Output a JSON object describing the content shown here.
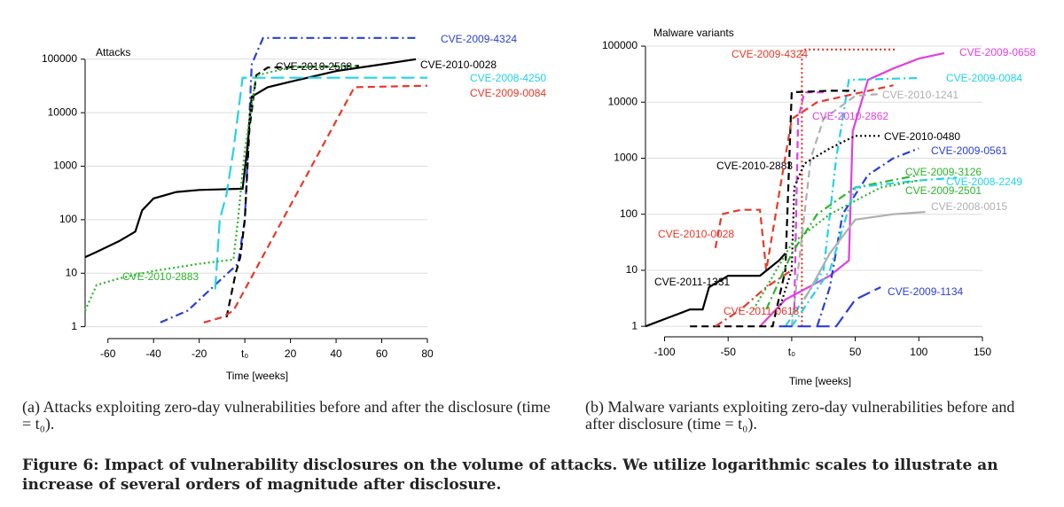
{
  "chart_data": [
    {
      "type": "line",
      "title": "Attacks",
      "xlabel": "Time [weeks]",
      "log_y": true,
      "xlim": [
        -70,
        80
      ],
      "ylim": [
        0.6,
        300000
      ],
      "xticks": [
        -60,
        -40,
        -20,
        {
          "value": 0,
          "label": "t₀"
        },
        20,
        40,
        60,
        80
      ],
      "yticks": [
        1,
        10,
        100,
        1000,
        10000,
        100000
      ],
      "series": [
        {
          "name": "CVE-2009-4324",
          "color": "#2a3fd8",
          "dash": "dashdot",
          "x": [
            -37,
            -25,
            -10,
            -3,
            0,
            3,
            8,
            75
          ],
          "values": [
            1.2,
            2,
            8,
            15,
            100,
            80000,
            250000,
            250000
          ]
        },
        {
          "name": "CVE-2010-0028",
          "color": "#000000",
          "dash": "solid",
          "x": [
            -70,
            -65,
            -55,
            -48,
            -45,
            -40,
            -30,
            -20,
            -1,
            1,
            3,
            10,
            20,
            40,
            60,
            75
          ],
          "values": [
            20,
            25,
            40,
            60,
            150,
            250,
            330,
            360,
            380,
            2000,
            20000,
            30000,
            38000,
            60000,
            80000,
            100000
          ]
        },
        {
          "name": "CVE-2010-2568",
          "color": "#000000",
          "dash": "dashed",
          "x": [
            -8,
            -4,
            -2,
            0,
            2,
            5,
            10,
            50
          ],
          "values": [
            1.5,
            10,
            20,
            100,
            5000,
            50000,
            70000,
            75000
          ]
        },
        {
          "name": "CVE-2008-4250",
          "color": "#22d3e6",
          "dash": "longdash",
          "x": [
            -13,
            -11,
            -8,
            -5,
            -1,
            80
          ],
          "values": [
            5,
            100,
            300,
            2000,
            45000,
            45000
          ]
        },
        {
          "name": "CVE-2009-0084",
          "color": "#e8382a",
          "dash": "dashed",
          "x": [
            -18,
            -10,
            -5,
            48,
            80
          ],
          "values": [
            1.2,
            1.5,
            2,
            30000,
            32000
          ]
        },
        {
          "name": "CVE-2010-2883",
          "color": "#2bb52b",
          "dash": "dotted",
          "x": [
            -70,
            -65,
            -55,
            -40,
            -20,
            -5,
            -3,
            0,
            5,
            20,
            50
          ],
          "values": [
            2,
            6,
            8,
            11,
            15,
            18,
            100,
            2000,
            50000,
            70000,
            75000
          ]
        }
      ]
    },
    {
      "type": "line",
      "title": "Malware variants",
      "xlabel": "Time [weeks]",
      "log_y": true,
      "xlim": [
        -115,
        150
      ],
      "ylim": [
        0.65,
        155000
      ],
      "xticks": [
        -100,
        -50,
        {
          "value": 0,
          "label": "t₀"
        },
        50,
        100,
        150
      ],
      "yticks": [
        1,
        10,
        100,
        1000,
        10000,
        100000
      ],
      "series": [
        {
          "name": "CVE-2009-4324",
          "color": "#e8382a",
          "dash": "dotted",
          "x": [
            8,
            8,
            82
          ],
          "values": [
            1,
            87000,
            87000
          ]
        },
        {
          "name": "CVE-2009-0658",
          "color": "#e040e0",
          "dash": "solid",
          "x": [
            -25,
            -5,
            30,
            45,
            48,
            60,
            80,
            100,
            120
          ],
          "values": [
            1,
            3,
            8,
            15,
            3000,
            25000,
            40000,
            60000,
            75000
          ]
        },
        {
          "name": "CVE-2009-0084",
          "color": "#22d3e6",
          "dash": "dashdot",
          "x": [
            -5,
            25,
            35,
            45,
            100
          ],
          "values": [
            1,
            10,
            1000,
            25000,
            27000
          ]
        },
        {
          "name": "CVE-2010-1241",
          "color": "#b0b0b0",
          "dash": "dashed",
          "x": [
            0,
            15,
            25,
            50,
            70
          ],
          "values": [
            1,
            1000,
            5000,
            13000,
            14000
          ]
        },
        {
          "name": "CVE-2010-2862",
          "color": "#e040e0",
          "dash": "dashed",
          "x": [
            2,
            5,
            10,
            25
          ],
          "values": [
            2,
            5000,
            15000,
            15000
          ]
        },
        {
          "name": "CVE-2010-0480",
          "color": "#000000",
          "dash": "dotted",
          "x": [
            -10,
            0,
            2,
            10,
            30,
            50,
            70
          ],
          "values": [
            2,
            10,
            300,
            800,
            1500,
            2500,
            2500
          ]
        },
        {
          "name": "CVE-2009-0561",
          "color": "#2a3fd8",
          "dash": "dashdot",
          "x": [
            20,
            30,
            40,
            60,
            80,
            100
          ],
          "values": [
            1,
            5,
            100,
            500,
            1000,
            1500
          ]
        },
        {
          "name": "CVE-2010-2883",
          "color": "#000000",
          "dash": "dashed",
          "x": [
            -80,
            -15,
            -5,
            0,
            30,
            50
          ],
          "values": [
            1,
            1,
            10,
            15000,
            16000,
            16000
          ]
        },
        {
          "name": "CVE-2009-3126",
          "color": "#2bb52b",
          "dash": "dashdot",
          "x": [
            -20,
            0,
            20,
            50,
            100
          ],
          "values": [
            2,
            20,
            100,
            300,
            500
          ]
        },
        {
          "name": "CVE-2008-2249",
          "color": "#22d3e6",
          "dash": "dashdot",
          "x": [
            0,
            30,
            50,
            100,
            130
          ],
          "values": [
            1,
            10,
            300,
            400,
            450
          ]
        },
        {
          "name": "CVE-2009-2501",
          "color": "#2bb52b",
          "dash": "dotted",
          "x": [
            -30,
            0,
            30,
            70,
            100
          ],
          "values": [
            2,
            30,
            100,
            300,
            400
          ]
        },
        {
          "name": "CVE-2008-0015",
          "color": "#b0b0b0",
          "dash": "solid",
          "x": [
            10,
            30,
            50,
            80,
            105
          ],
          "values": [
            3,
            20,
            80,
            100,
            110
          ]
        },
        {
          "name": "CVE-2010-0028",
          "color": "#e8382a",
          "dash": "dashed",
          "x": [
            -60,
            -55,
            -40,
            -25,
            -20,
            0,
            20,
            80
          ],
          "values": [
            25,
            100,
            120,
            120,
            10,
            5000,
            10000,
            20000
          ]
        },
        {
          "name": "CVE-2011-1331",
          "color": "#000000",
          "dash": "solid",
          "x": [
            -115,
            -80,
            -70,
            -65,
            -50,
            -25,
            -10,
            -5
          ],
          "values": [
            1,
            2,
            2,
            5,
            8,
            8,
            15,
            20
          ]
        },
        {
          "name": "CVE-2011-0618",
          "color": "#e8382a",
          "dash": "dashdot",
          "x": [
            -60,
            -40,
            -20,
            0
          ],
          "values": [
            1,
            2,
            5,
            10
          ]
        },
        {
          "name": "CVE-2009-1134",
          "color": "#2a3fd8",
          "dash": "longdash",
          "x": [
            -10,
            35,
            50,
            70
          ],
          "values": [
            1,
            1,
            3,
            5
          ]
        }
      ]
    }
  ],
  "captions": [
    "(a) Attacks exploiting zero-day vulnerabilities before and after the disclosure (time = t₀).",
    "(b) Malware variants exploiting zero-day vulnerabilities before and after disclosure (time = t₀)."
  ],
  "figure_caption": "Figure 6: Impact of vulnerability disclosures on the volume of attacks. We utilize logarithmic scales to illustrate an increase of several orders of magnitude after disclosure."
}
